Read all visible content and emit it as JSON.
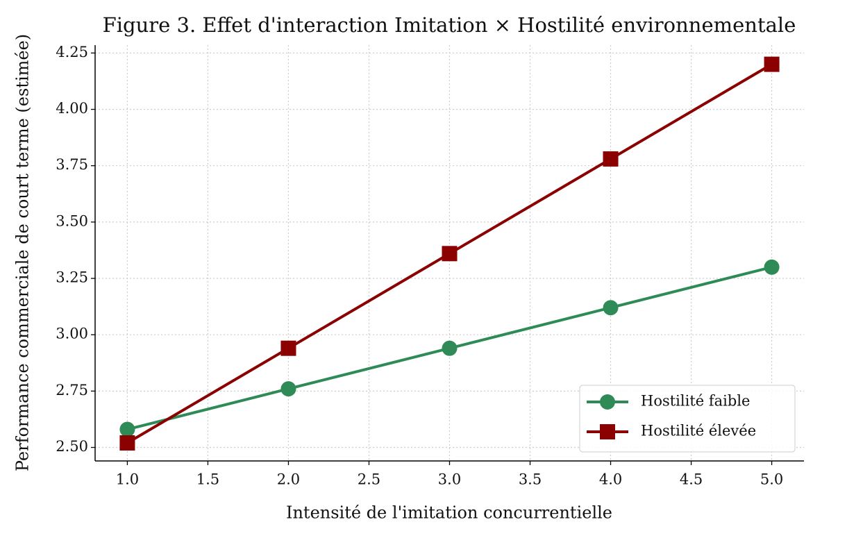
{
  "chart_data": {
    "type": "line",
    "title": "Figure 3. Effet d'interaction Imitation × Hostilité environnementale",
    "x_label": "Intensité de l'imitation concurrentielle",
    "y_label": "Performance commerciale de court terme (estimée)",
    "x": [
      1,
      2,
      3,
      4,
      5
    ],
    "series": [
      {
        "name": "Hostilité faible",
        "color": "#2e8b57",
        "marker": "circle",
        "values": [
          2.58,
          2.76,
          2.94,
          3.12,
          3.3
        ]
      },
      {
        "name": "Hostilité élevée",
        "color": "#8b0000",
        "marker": "square",
        "values": [
          2.52,
          2.94,
          3.36,
          3.78,
          4.2
        ]
      }
    ],
    "xlim": [
      0.8,
      5.2
    ],
    "ylim": [
      2.44,
      4.285
    ],
    "xticks": [
      {
        "value": 1,
        "label": "1.0"
      },
      {
        "value": 1.5,
        "label": "1.5"
      },
      {
        "value": 2,
        "label": "2.0"
      },
      {
        "value": 2.5,
        "label": "2.5"
      },
      {
        "value": 3,
        "label": "3.0"
      },
      {
        "value": 3.5,
        "label": "3.5"
      },
      {
        "value": 4,
        "label": "4.0"
      },
      {
        "value": 4.5,
        "label": "4.5"
      },
      {
        "value": 5,
        "label": "5.0"
      }
    ],
    "yticks": [
      {
        "value": 2.5,
        "label": "2.50"
      },
      {
        "value": 2.75,
        "label": "2.75"
      },
      {
        "value": 3,
        "label": "3.00"
      },
      {
        "value": 3.25,
        "label": "3.25"
      },
      {
        "value": 3.5,
        "label": "3.50"
      },
      {
        "value": 3.75,
        "label": "3.75"
      },
      {
        "value": 4,
        "label": "4.00"
      },
      {
        "value": 4.25,
        "label": "4.25"
      }
    ],
    "grid": true,
    "legend": "lower right"
  }
}
